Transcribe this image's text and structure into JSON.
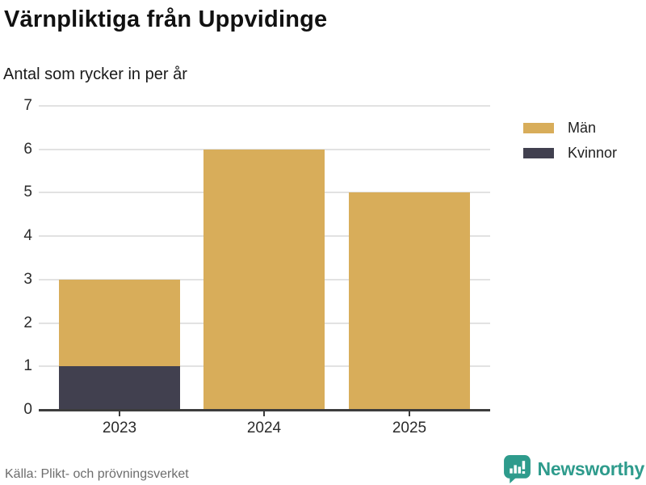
{
  "header": {
    "title": "Värnpliktiga från Uppvidinge",
    "subtitle": "Antal som rycker in per år"
  },
  "footer": {
    "source": "Källa: Plikt- och prövningsverket",
    "brand_name": "Newsworthy",
    "brand_color": "#2e9b8c"
  },
  "icons": {
    "logo_icon": "speech-bubble-with-bar-chart-and-exclamation"
  },
  "chart_data": {
    "type": "bar",
    "stacked": true,
    "title": "Värnpliktiga från Uppvidinge",
    "subtitle": "Antal som rycker in per år",
    "xlabel": "",
    "ylabel": "",
    "categories": [
      "2023",
      "2024",
      "2025"
    ],
    "series": [
      {
        "name": "Män",
        "color": "#d8ad5a",
        "values": [
          2,
          6,
          5
        ]
      },
      {
        "name": "Kvinnor",
        "color": "#41404f",
        "values": [
          1,
          0,
          0
        ]
      }
    ],
    "totals": [
      3,
      6,
      5
    ],
    "ylim": [
      0,
      7
    ],
    "yticks": [
      0,
      1,
      2,
      3,
      4,
      5,
      6,
      7
    ],
    "grid": true,
    "gridline_color": "#e2e2e2",
    "axis_color": "#3c3c3c",
    "legend_position": "right-top",
    "legend_order": [
      "Män",
      "Kvinnor"
    ]
  }
}
